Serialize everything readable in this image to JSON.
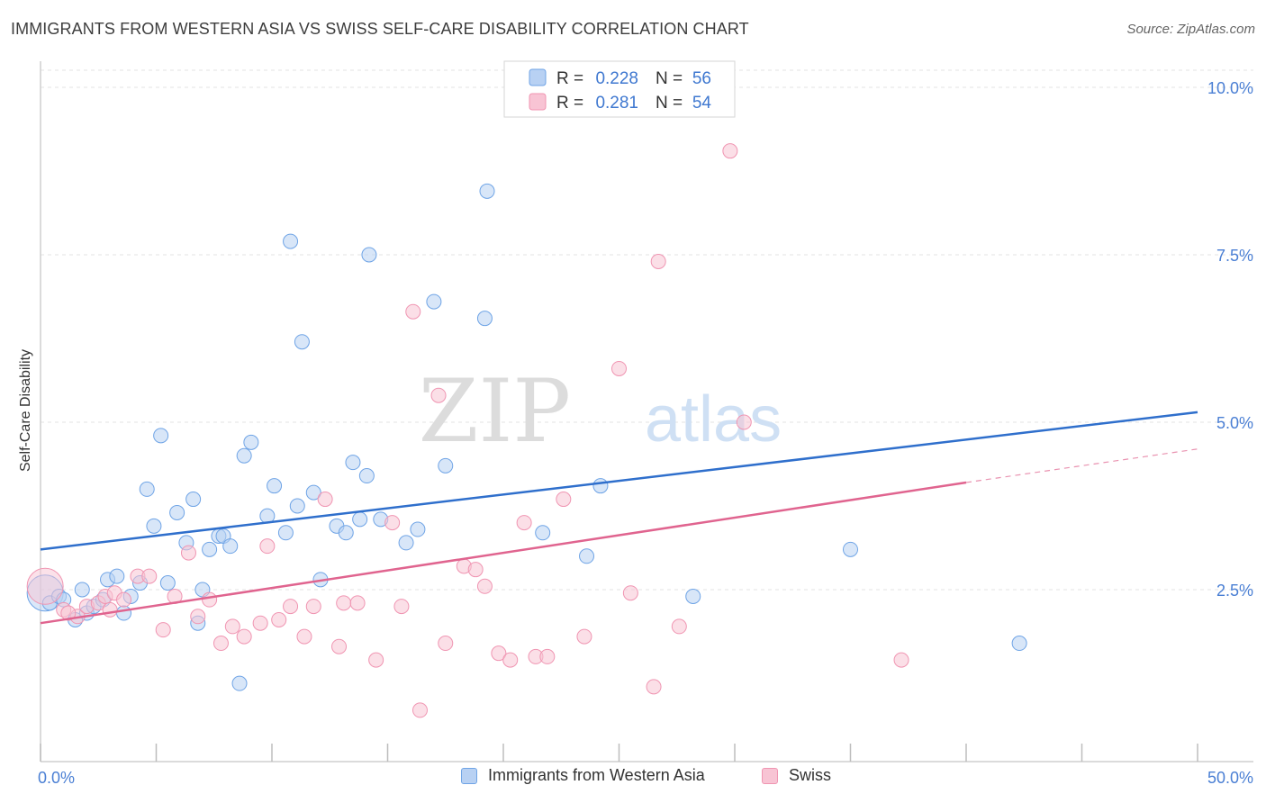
{
  "title": "IMMIGRANTS FROM WESTERN ASIA VS SWISS SELF-CARE DISABILITY CORRELATION CHART",
  "source": "Source: ZipAtlas.com",
  "watermark": {
    "zip": "ZIP",
    "atlas": "atlas"
  },
  "chart_data": {
    "type": "scatter",
    "title": "IMMIGRANTS FROM WESTERN ASIA VS SWISS SELF-CARE DISABILITY CORRELATION CHART",
    "ylabel": "Self-Care Disability",
    "xlim": [
      0,
      50
    ],
    "ylim": [
      0,
      10.5
    ],
    "x_ticks_labeled": [
      "0.0%",
      "50.0%"
    ],
    "y_ticks": [
      {
        "value": 2.5,
        "label": "2.5%"
      },
      {
        "value": 5.0,
        "label": "5.0%"
      },
      {
        "value": 7.5,
        "label": "7.5%"
      },
      {
        "value": 10.0,
        "label": "10.0%"
      }
    ],
    "grid": true,
    "legend_position": "top-center",
    "series": [
      {
        "name": "Immigrants from Western Asia",
        "color": "#6fa4e6",
        "fill": "#b8d1f3",
        "line_color": "#2f6fcc",
        "r_label": "R =",
        "r_value": "0.228",
        "n_label": "N =",
        "n_value": "56",
        "trend": {
          "x0": 0,
          "y0": 3.1,
          "x1": 50,
          "y1": 5.15
        },
        "points": [
          [
            0.4,
            2.3
          ],
          [
            0.8,
            2.4
          ],
          [
            1.0,
            2.35
          ],
          [
            1.5,
            2.05
          ],
          [
            1.8,
            2.5
          ],
          [
            2.0,
            2.15
          ],
          [
            2.3,
            2.25
          ],
          [
            2.7,
            2.35
          ],
          [
            2.9,
            2.65
          ],
          [
            3.3,
            2.7
          ],
          [
            3.6,
            2.15
          ],
          [
            3.9,
            2.4
          ],
          [
            4.3,
            2.6
          ],
          [
            4.6,
            4.0
          ],
          [
            4.9,
            3.45
          ],
          [
            5.2,
            4.8
          ],
          [
            5.5,
            2.6
          ],
          [
            5.9,
            3.65
          ],
          [
            6.3,
            3.2
          ],
          [
            6.6,
            3.85
          ],
          [
            6.8,
            2.0
          ],
          [
            7.0,
            2.5
          ],
          [
            7.3,
            3.1
          ],
          [
            7.7,
            3.3
          ],
          [
            7.9,
            3.3
          ],
          [
            8.2,
            3.15
          ],
          [
            8.6,
            1.1
          ],
          [
            8.8,
            4.5
          ],
          [
            9.1,
            4.7
          ],
          [
            9.8,
            3.6
          ],
          [
            10.1,
            4.05
          ],
          [
            10.6,
            3.35
          ],
          [
            11.1,
            3.75
          ],
          [
            11.3,
            6.2
          ],
          [
            11.8,
            3.95
          ],
          [
            12.1,
            2.65
          ],
          [
            12.8,
            3.45
          ],
          [
            13.2,
            3.35
          ],
          [
            13.5,
            4.4
          ],
          [
            13.8,
            3.55
          ],
          [
            14.1,
            4.2
          ],
          [
            14.2,
            7.5
          ],
          [
            14.7,
            3.55
          ],
          [
            15.8,
            3.2
          ],
          [
            16.3,
            3.4
          ],
          [
            17.0,
            6.8
          ],
          [
            17.5,
            4.35
          ],
          [
            19.2,
            6.55
          ],
          [
            19.3,
            8.45
          ],
          [
            21.7,
            3.35
          ],
          [
            23.6,
            3.0
          ],
          [
            24.2,
            4.05
          ],
          [
            28.2,
            2.4
          ],
          [
            35.0,
            3.1
          ],
          [
            42.3,
            1.7
          ],
          [
            10.8,
            7.7
          ]
        ],
        "large_point": [
          0.2,
          2.45
        ]
      },
      {
        "name": "Swiss",
        "color": "#f095b2",
        "fill": "#f8c4d4",
        "line_color": "#e0648f",
        "r_label": "R =",
        "r_value": "0.281",
        "n_label": "N =",
        "n_value": "54",
        "trend": {
          "x0": 0,
          "y0": 2.0,
          "x1": 40,
          "y1": 4.1
        },
        "trend_dashed": {
          "x0": 40,
          "y0": 4.1,
          "x1": 50,
          "y1": 4.6
        },
        "points": [
          [
            1.0,
            2.2
          ],
          [
            1.6,
            2.1
          ],
          [
            2.0,
            2.25
          ],
          [
            2.5,
            2.3
          ],
          [
            2.8,
            2.4
          ],
          [
            3.2,
            2.45
          ],
          [
            3.6,
            2.35
          ],
          [
            4.2,
            2.7
          ],
          [
            4.7,
            2.7
          ],
          [
            5.3,
            1.9
          ],
          [
            5.8,
            2.4
          ],
          [
            6.4,
            3.05
          ],
          [
            6.8,
            2.1
          ],
          [
            7.3,
            2.35
          ],
          [
            7.8,
            1.7
          ],
          [
            8.3,
            1.95
          ],
          [
            8.8,
            1.8
          ],
          [
            9.5,
            2.0
          ],
          [
            9.8,
            3.15
          ],
          [
            10.3,
            2.05
          ],
          [
            10.8,
            2.25
          ],
          [
            11.4,
            1.8
          ],
          [
            11.8,
            2.25
          ],
          [
            12.3,
            3.85
          ],
          [
            12.9,
            1.65
          ],
          [
            13.1,
            2.3
          ],
          [
            13.7,
            2.3
          ],
          [
            14.5,
            1.45
          ],
          [
            15.2,
            3.5
          ],
          [
            15.6,
            2.25
          ],
          [
            16.1,
            6.65
          ],
          [
            16.4,
            0.7
          ],
          [
            17.2,
            5.4
          ],
          [
            17.5,
            1.7
          ],
          [
            18.3,
            2.85
          ],
          [
            18.8,
            2.8
          ],
          [
            19.2,
            2.55
          ],
          [
            19.8,
            1.55
          ],
          [
            20.3,
            1.45
          ],
          [
            20.9,
            3.5
          ],
          [
            21.4,
            1.5
          ],
          [
            21.9,
            1.5
          ],
          [
            22.6,
            3.85
          ],
          [
            23.5,
            1.8
          ],
          [
            25.0,
            5.8
          ],
          [
            25.5,
            2.45
          ],
          [
            26.5,
            1.05
          ],
          [
            26.7,
            7.4
          ],
          [
            27.6,
            1.95
          ],
          [
            29.8,
            9.05
          ],
          [
            30.4,
            5.0
          ],
          [
            37.2,
            1.45
          ],
          [
            1.2,
            2.15
          ],
          [
            3.0,
            2.2
          ]
        ],
        "large_point": [
          0.2,
          2.55
        ]
      }
    ]
  },
  "legend_bottom": [
    {
      "label": "Immigrants from Western Asia",
      "fill": "#b8d1f3",
      "stroke": "#6fa4e6"
    },
    {
      "label": "Swiss",
      "fill": "#f8c4d4",
      "stroke": "#f095b2"
    }
  ]
}
